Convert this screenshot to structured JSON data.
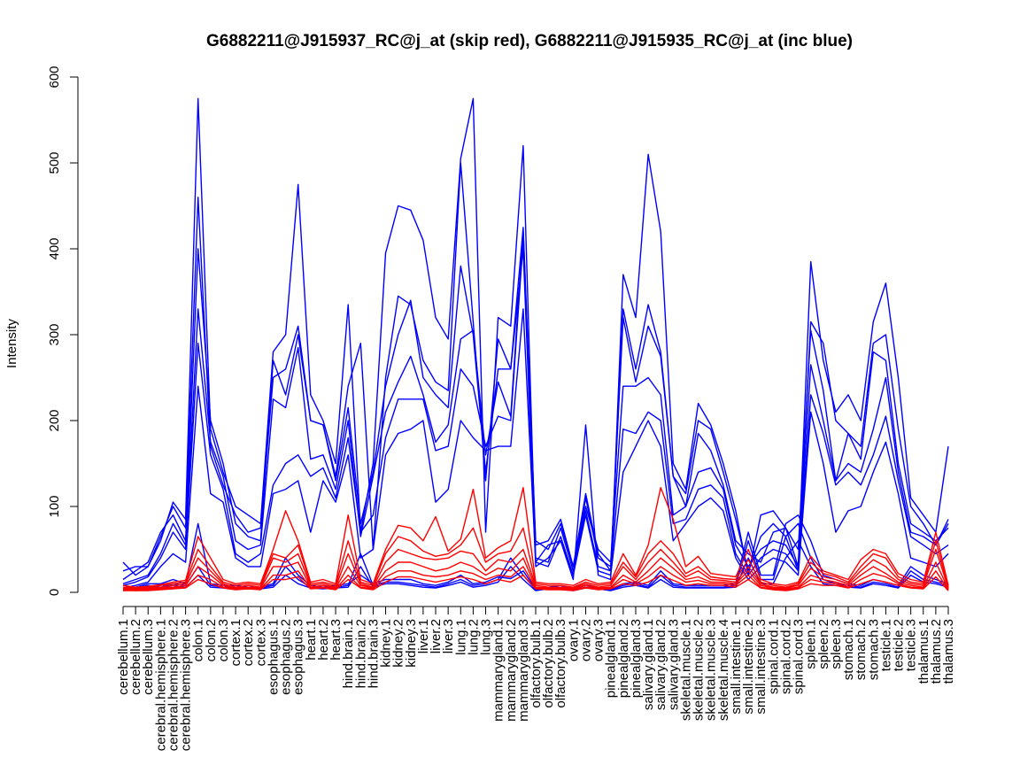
{
  "chart_data": {
    "type": "line",
    "title": "G6882211@J915937_RC@j_at (skip red), G6882211@J915935_RC@j_at (inc blue)",
    "ylabel": "Intensity",
    "xlabel": "",
    "ylim": [
      0,
      600
    ],
    "yticks": [
      0,
      100,
      200,
      300,
      400,
      500,
      600
    ],
    "grid": false,
    "categories": [
      "cerebellum.1",
      "cerebellum.2",
      "cerebellum.3",
      "cerebral.hemisphere.1",
      "cerebral.hemisphere.2",
      "cerebral.hemisphere.3",
      "colon.1",
      "colon.2",
      "colon.3",
      "cortex.1",
      "cortex.2",
      "cortex.3",
      "esophagus.1",
      "esophagus.2",
      "esophagus.3",
      "heart.1",
      "heart.2",
      "heart.3",
      "hind.brain.1",
      "hind.brain.2",
      "hind.brain.3",
      "kidney.1",
      "kidney.2",
      "kidney.3",
      "liver.1",
      "liver.2",
      "liver.3",
      "lung.1",
      "lung.2",
      "lung.3",
      "mammarygland.1",
      "mammarygland.2",
      "mammarygland.3",
      "olfactory.bulb.1",
      "olfactory.bulb.2",
      "olfactory.bulb.3",
      "ovary.1",
      "ovary.2",
      "ovary.3",
      "pinealgland.1",
      "pinealgland.2",
      "pinealgland.3",
      "salivary.gland.1",
      "salivary.gland.2",
      "salivary.gland.3",
      "skeletal.muscle.1",
      "skeletal.muscle.2",
      "skeletal.muscle.3",
      "skeletal.muscle.4",
      "small.intestine.1",
      "small.intestine.2",
      "small.intestine.3",
      "spinal.cord.1",
      "spinal.cord.2",
      "spinal.cord.3",
      "spleen.1",
      "spleen.2",
      "spleen.3",
      "stomach.1",
      "stomach.2",
      "stomach.3",
      "testicle.1",
      "testicle.2",
      "testicle.3",
      "thalamus.1",
      "thalamus.2",
      "thalamus.3"
    ],
    "series": [
      {
        "color": "#0000ff",
        "values": [
          35,
          20,
          30,
          60,
          105,
          85,
          575,
          190,
          140,
          100,
          90,
          80,
          280,
          300,
          475,
          230,
          200,
          150,
          335,
          70,
          150,
          395,
          450,
          445,
          410,
          320,
          295,
          505,
          575,
          70,
          320,
          310,
          520,
          35,
          55,
          60,
          15,
          195,
          20,
          15,
          370,
          320,
          510,
          420,
          150,
          120,
          220,
          195,
          150,
          95,
          20,
          90,
          95,
          75,
          30,
          385,
          270,
          210,
          230,
          200,
          315,
          360,
          250,
          110,
          90,
          70,
          170
        ]
      },
      {
        "color": "#0000ff",
        "values": [
          25,
          30,
          30,
          65,
          100,
          75,
          460,
          170,
          125,
          90,
          70,
          75,
          250,
          260,
          310,
          200,
          195,
          135,
          240,
          290,
          50,
          250,
          345,
          335,
          270,
          245,
          235,
          500,
          315,
          130,
          295,
          260,
          425,
          55,
          60,
          85,
          30,
          115,
          45,
          25,
          330,
          260,
          335,
          280,
          135,
          115,
          200,
          190,
          140,
          85,
          25,
          65,
          80,
          65,
          25,
          315,
          290,
          200,
          185,
          170,
          290,
          300,
          190,
          100,
          80,
          55,
          85
        ]
      },
      {
        "color": "#0000ff",
        "values": [
          15,
          25,
          35,
          70,
          90,
          60,
          400,
          200,
          150,
          80,
          65,
          60,
          270,
          230,
          300,
          200,
          195,
          130,
          215,
          80,
          140,
          240,
          300,
          340,
          250,
          230,
          215,
          380,
          300,
          140,
          260,
          260,
          400,
          30,
          40,
          60,
          20,
          110,
          40,
          30,
          320,
          245,
          310,
          275,
          135,
          100,
          185,
          165,
          125,
          60,
          45,
          35,
          70,
          75,
          50,
          305,
          235,
          130,
          185,
          155,
          280,
          270,
          150,
          80,
          70,
          60,
          75
        ]
      },
      {
        "color": "#0000ff",
        "values": [
          10,
          15,
          20,
          45,
          80,
          55,
          330,
          175,
          135,
          60,
          50,
          55,
          225,
          215,
          285,
          155,
          160,
          120,
          200,
          65,
          135,
          210,
          245,
          275,
          230,
          175,
          195,
          295,
          305,
          160,
          245,
          205,
          420,
          60,
          50,
          80,
          30,
          100,
          50,
          35,
          240,
          240,
          250,
          230,
          90,
          100,
          140,
          145,
          120,
          55,
          30,
          50,
          60,
          55,
          30,
          265,
          200,
          130,
          150,
          140,
          190,
          250,
          140,
          70,
          65,
          55,
          80
        ]
      },
      {
        "color": "#0000ff",
        "values": [
          8,
          12,
          18,
          40,
          70,
          50,
          290,
          160,
          120,
          45,
          35,
          45,
          125,
          150,
          160,
          135,
          145,
          110,
          180,
          70,
          90,
          180,
          225,
          225,
          225,
          165,
          170,
          260,
          240,
          170,
          205,
          200,
          410,
          40,
          35,
          75,
          25,
          95,
          30,
          25,
          190,
          185,
          210,
          200,
          80,
          85,
          120,
          125,
          110,
          45,
          20,
          40,
          50,
          45,
          25,
          230,
          185,
          125,
          140,
          125,
          160,
          205,
          130,
          65,
          55,
          45,
          55
        ]
      },
      {
        "color": "#0000ff",
        "values": [
          5,
          8,
          12,
          30,
          45,
          35,
          240,
          115,
          105,
          40,
          30,
          30,
          115,
          120,
          130,
          70,
          130,
          105,
          160,
          40,
          50,
          160,
          185,
          190,
          200,
          105,
          120,
          200,
          180,
          165,
          170,
          170,
          330,
          35,
          30,
          65,
          20,
          90,
          25,
          20,
          140,
          170,
          200,
          170,
          60,
          80,
          100,
          110,
          95,
          40,
          15,
          30,
          40,
          35,
          20,
          210,
          150,
          70,
          95,
          100,
          140,
          175,
          115,
          40,
          35,
          30,
          45
        ]
      },
      {
        "color": "#0000ff",
        "values": [
          4,
          6,
          10,
          10,
          15,
          10,
          80,
          10,
          8,
          8,
          6,
          6,
          10,
          40,
          20,
          8,
          6,
          8,
          10,
          20,
          10,
          15,
          15,
          15,
          10,
          8,
          12,
          20,
          10,
          12,
          18,
          16,
          25,
          4,
          6,
          8,
          4,
          8,
          6,
          4,
          10,
          12,
          8,
          25,
          10,
          8,
          8,
          8,
          8,
          10,
          70,
          20,
          20,
          80,
          90,
          60,
          20,
          15,
          10,
          8,
          15,
          12,
          8,
          30,
          20,
          15,
          10
        ]
      },
      {
        "color": "#0000ff",
        "values": [
          3,
          5,
          8,
          6,
          10,
          8,
          30,
          8,
          6,
          6,
          5,
          5,
          8,
          30,
          15,
          6,
          5,
          6,
          8,
          45,
          8,
          12,
          12,
          10,
          8,
          6,
          10,
          15,
          8,
          10,
          15,
          40,
          20,
          3,
          5,
          6,
          3,
          6,
          5,
          3,
          8,
          10,
          6,
          20,
          8,
          6,
          6,
          6,
          6,
          8,
          60,
          15,
          15,
          65,
          80,
          40,
          15,
          10,
          8,
          6,
          12,
          10,
          6,
          25,
          15,
          12,
          8
        ]
      },
      {
        "color": "#0000ff",
        "values": [
          2,
          4,
          6,
          5,
          8,
          6,
          20,
          6,
          5,
          5,
          4,
          4,
          6,
          20,
          10,
          5,
          4,
          5,
          6,
          30,
          6,
          10,
          10,
          8,
          6,
          5,
          8,
          12,
          6,
          8,
          12,
          30,
          15,
          2,
          4,
          5,
          2,
          5,
          4,
          2,
          6,
          8,
          5,
          15,
          6,
          5,
          5,
          5,
          5,
          6,
          40,
          10,
          10,
          40,
          60,
          30,
          10,
          8,
          6,
          5,
          10,
          8,
          5,
          20,
          12,
          10,
          6
        ]
      },
      {
        "color": "#ff0000",
        "values": [
          8,
          6,
          7,
          9,
          12,
          14,
          65,
          40,
          15,
          10,
          12,
          10,
          50,
          95,
          60,
          12,
          15,
          10,
          90,
          15,
          10,
          50,
          78,
          75,
          60,
          88,
          48,
          62,
          120,
          40,
          52,
          60,
          122,
          12,
          10,
          10,
          8,
          15,
          10,
          12,
          45,
          20,
          55,
          122,
          85,
          30,
          42,
          22,
          20,
          18,
          50,
          15,
          10,
          8,
          12,
          42,
          25,
          20,
          15,
          38,
          50,
          45,
          22,
          15,
          12,
          70,
          8
        ]
      },
      {
        "color": "#ff0000",
        "values": [
          6,
          5,
          6,
          8,
          10,
          12,
          50,
          30,
          12,
          8,
          10,
          8,
          45,
          40,
          55,
          10,
          12,
          8,
          60,
          12,
          8,
          45,
          65,
          60,
          48,
          42,
          45,
          55,
          75,
          35,
          45,
          48,
          75,
          10,
          8,
          8,
          6,
          12,
          8,
          10,
          35,
          18,
          45,
          60,
          45,
          22,
          30,
          18,
          16,
          15,
          38,
          12,
          8,
          6,
          10,
          35,
          22,
          18,
          12,
          30,
          45,
          40,
          18,
          12,
          10,
          60,
          6
        ]
      },
      {
        "color": "#ff0000",
        "values": [
          5,
          4,
          5,
          6,
          8,
          10,
          40,
          25,
          10,
          6,
          8,
          6,
          40,
          35,
          45,
          8,
          10,
          6,
          45,
          10,
          6,
          35,
          50,
          45,
          40,
          38,
          40,
          48,
          45,
          25,
          38,
          35,
          50,
          8,
          6,
          6,
          5,
          10,
          6,
          8,
          30,
          15,
          35,
          50,
          35,
          18,
          25,
          15,
          14,
          12,
          30,
          10,
          6,
          5,
          8,
          28,
          18,
          15,
          10,
          25,
          38,
          30,
          15,
          10,
          8,
          50,
          5
        ]
      },
      {
        "color": "#ff0000",
        "values": [
          4,
          3,
          4,
          5,
          6,
          8,
          30,
          20,
          8,
          5,
          6,
          5,
          30,
          30,
          35,
          6,
          8,
          5,
          30,
          8,
          5,
          25,
          35,
          35,
          30,
          25,
          28,
          35,
          30,
          20,
          28,
          25,
          40,
          6,
          5,
          5,
          4,
          8,
          5,
          6,
          20,
          12,
          25,
          40,
          28,
          15,
          18,
          12,
          12,
          10,
          25,
          8,
          5,
          4,
          6,
          20,
          15,
          12,
          8,
          20,
          30,
          22,
          12,
          8,
          6,
          35,
          4
        ]
      },
      {
        "color": "#ff0000",
        "values": [
          3,
          2,
          3,
          4,
          5,
          6,
          20,
          15,
          6,
          4,
          5,
          4,
          20,
          20,
          25,
          5,
          6,
          4,
          20,
          6,
          4,
          18,
          25,
          25,
          20,
          18,
          20,
          25,
          22,
          15,
          20,
          18,
          30,
          5,
          4,
          4,
          3,
          6,
          4,
          5,
          15,
          10,
          18,
          30,
          20,
          12,
          14,
          10,
          10,
          8,
          20,
          6,
          4,
          3,
          5,
          15,
          12,
          10,
          6,
          15,
          22,
          18,
          10,
          6,
          5,
          25,
          3
        ]
      },
      {
        "color": "#ff0000",
        "values": [
          2,
          2,
          2,
          3,
          4,
          5,
          15,
          10,
          5,
          3,
          4,
          3,
          15,
          15,
          18,
          4,
          5,
          3,
          15,
          5,
          3,
          12,
          18,
          18,
          15,
          12,
          15,
          18,
          15,
          10,
          15,
          12,
          20,
          4,
          3,
          3,
          2,
          5,
          3,
          4,
          10,
          8,
          12,
          20,
          14,
          8,
          10,
          8,
          8,
          6,
          15,
          5,
          3,
          2,
          4,
          10,
          8,
          8,
          5,
          10,
          15,
          12,
          8,
          5,
          4,
          18,
          2
        ]
      }
    ]
  }
}
